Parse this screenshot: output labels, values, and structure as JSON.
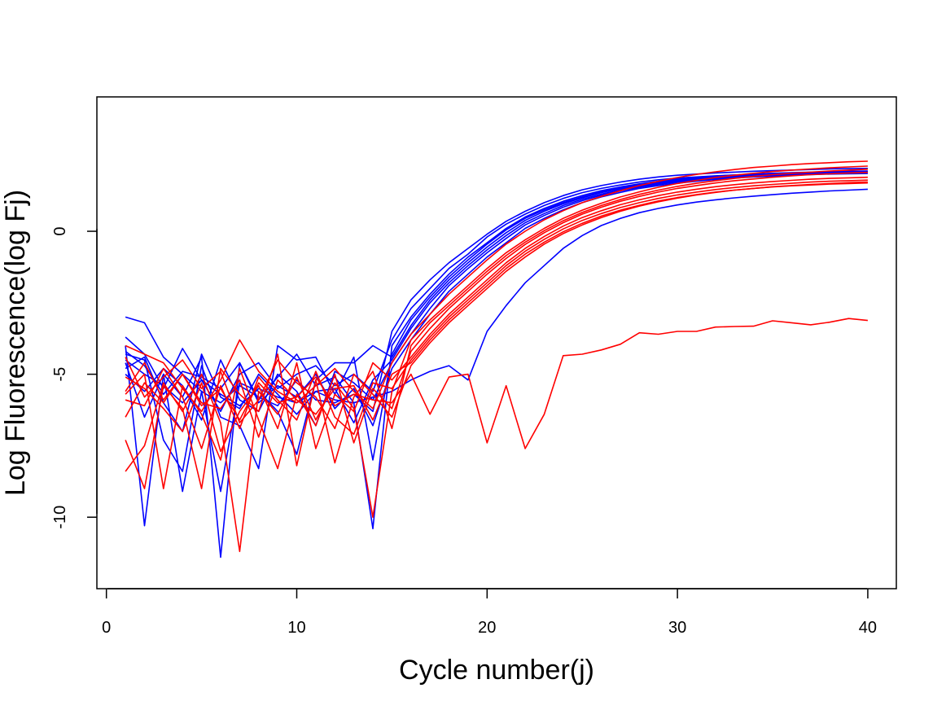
{
  "chart_data": {
    "type": "line",
    "title": "",
    "xlabel": "Cycle number(j)",
    "ylabel": "Log Fluorescence(log Fj)",
    "xlim": [
      -0.5,
      41.5
    ],
    "ylim": [
      -12.5,
      4.7
    ],
    "x_ticks": [
      0,
      10,
      20,
      30,
      40
    ],
    "y_ticks": [
      0,
      -5,
      -10
    ],
    "x_tick_labels": [
      "0",
      "10",
      "20",
      "30",
      "40"
    ],
    "y_tick_labels": [
      "0",
      "-5",
      "-10"
    ],
    "grid": false,
    "legend": "none",
    "colors": {
      "group_a": "#0000ff",
      "group_b": "#ff0000"
    },
    "x": [
      1,
      2,
      3,
      4,
      5,
      6,
      7,
      8,
      9,
      10,
      11,
      12,
      13,
      14,
      15,
      16,
      17,
      18,
      19,
      20,
      21,
      22,
      23,
      24,
      25,
      26,
      27,
      28,
      29,
      30,
      31,
      32,
      33,
      34,
      35,
      36,
      37,
      38,
      39,
      40
    ],
    "series": [
      {
        "name": "blue-1",
        "color": "#0000ff",
        "values": [
          -3.0,
          -3.2,
          -4.4,
          -5.0,
          -5.6,
          -6.0,
          -5.4,
          -5.8,
          -6.1,
          -5.2,
          -5.9,
          -6.0,
          -5.7,
          -6.3,
          -3.5,
          -2.4,
          -1.7,
          -1.1,
          -0.6,
          -0.1,
          0.35,
          0.7,
          1.0,
          1.25,
          1.45,
          1.6,
          1.72,
          1.82,
          1.9,
          1.96,
          2.0,
          2.04,
          2.07,
          2.1,
          2.12,
          2.14,
          2.16,
          2.18,
          2.19,
          2.2
        ]
      },
      {
        "name": "blue-2",
        "color": "#0000ff",
        "values": [
          -3.7,
          -4.3,
          -5.5,
          -4.1,
          -5.2,
          -6.3,
          -5.0,
          -4.6,
          -5.5,
          -5.0,
          -4.7,
          -5.4,
          -5.0,
          -5.6,
          -3.8,
          -2.7,
          -2.0,
          -1.3,
          -0.8,
          -0.2,
          0.25,
          0.6,
          0.9,
          1.15,
          1.35,
          1.5,
          1.62,
          1.72,
          1.8,
          1.86,
          1.9,
          1.94,
          1.97,
          2.0,
          2.02,
          2.04,
          2.06,
          2.07,
          2.08,
          2.09
        ]
      },
      {
        "name": "blue-3",
        "color": "#0000ff",
        "values": [
          -4.0,
          -10.3,
          -5.0,
          -5.8,
          -4.4,
          -11.4,
          -4.6,
          -5.9,
          -5.1,
          -4.3,
          -5.4,
          -5.1,
          -6.0,
          -10.4,
          -4.0,
          -3.0,
          -2.2,
          -1.5,
          -0.9,
          -0.4,
          0.1,
          0.5,
          0.8,
          1.05,
          1.25,
          1.42,
          1.55,
          1.66,
          1.75,
          1.82,
          1.88,
          1.93,
          1.97,
          2.0,
          2.03,
          2.05,
          2.07,
          2.09,
          2.1,
          2.11
        ]
      },
      {
        "name": "blue-4",
        "color": "#0000ff",
        "values": [
          -4.3,
          -4.5,
          -7.3,
          -8.4,
          -4.7,
          -6.5,
          -6.8,
          -8.3,
          -4.0,
          -4.5,
          -4.4,
          -5.7,
          -4.4,
          -8.0,
          -4.3,
          -3.1,
          -2.3,
          -1.6,
          -1.0,
          -0.45,
          0.05,
          0.45,
          0.75,
          1.0,
          1.2,
          1.38,
          1.52,
          1.63,
          1.72,
          1.8,
          1.86,
          1.91,
          1.95,
          1.98,
          2.01,
          2.03,
          2.05,
          2.07,
          2.08,
          2.09
        ]
      },
      {
        "name": "blue-5",
        "color": "#0000ff",
        "values": [
          -4.6,
          -6.5,
          -5.0,
          -9.1,
          -5.6,
          -9.1,
          -5.3,
          -5.6,
          -6.3,
          -7.8,
          -5.2,
          -4.6,
          -4.6,
          -4.0,
          -4.4,
          -3.3,
          -2.4,
          -1.7,
          -1.1,
          -0.55,
          -0.05,
          0.38,
          0.7,
          0.96,
          1.17,
          1.35,
          1.49,
          1.6,
          1.7,
          1.78,
          1.84,
          1.89,
          1.93,
          1.96,
          1.99,
          2.01,
          2.03,
          2.05,
          2.06,
          2.07
        ]
      },
      {
        "name": "blue-6",
        "color": "#0000ff",
        "values": [
          -4.8,
          -4.4,
          -6.0,
          -7.0,
          -4.3,
          -5.8,
          -6.2,
          -5.0,
          -5.7,
          -6.4,
          -5.6,
          -5.5,
          -6.7,
          -5.2,
          -4.5,
          -3.4,
          -2.5,
          -1.8,
          -1.2,
          -0.65,
          -0.15,
          0.3,
          0.62,
          0.9,
          1.12,
          1.3,
          1.45,
          1.57,
          1.67,
          1.75,
          1.81,
          1.86,
          1.9,
          1.94,
          1.97,
          1.99,
          2.01,
          2.03,
          2.04,
          2.05
        ]
      },
      {
        "name": "blue-7",
        "color": "#0000ff",
        "values": [
          -5.0,
          -5.6,
          -4.8,
          -5.4,
          -6.6,
          -4.5,
          -5.9,
          -6.3,
          -5.0,
          -5.6,
          -6.8,
          -4.9,
          -5.3,
          -5.9,
          -4.6,
          -3.6,
          -2.7,
          -1.9,
          -1.3,
          -0.75,
          -0.25,
          0.22,
          0.55,
          0.84,
          1.07,
          1.26,
          1.41,
          1.54,
          1.64,
          1.72,
          1.79,
          1.84,
          1.89,
          1.93,
          1.96,
          1.98,
          2.0,
          2.02,
          2.03,
          2.04
        ]
      },
      {
        "name": "blue-8",
        "color": "#0000ff",
        "values": [
          -4.2,
          -4.7,
          -5.7,
          -4.9,
          -5.1,
          -5.5,
          -4.6,
          -6.0,
          -5.4,
          -5.8,
          -5.0,
          -6.2,
          -5.5,
          -6.8,
          -4.8,
          -3.8,
          -2.9,
          -2.1,
          -1.5,
          -0.9,
          -0.4,
          0.1,
          0.45,
          0.75,
          1.0,
          1.2,
          1.36,
          1.5,
          1.6,
          1.68,
          1.75,
          1.81,
          1.86,
          1.9,
          1.93,
          1.96,
          1.98,
          2.0,
          2.01,
          2.02
        ]
      },
      {
        "name": "blue-outlier",
        "color": "#0000ff",
        "values": [
          -4.5,
          -5.0,
          -5.4,
          -6.0,
          -5.2,
          -5.7,
          -6.1,
          -5.5,
          -5.8,
          -6.0,
          -5.6,
          -5.9,
          -6.0,
          -5.8,
          -5.6,
          -5.2,
          -4.9,
          -4.7,
          -5.2,
          -3.5,
          -2.6,
          -1.8,
          -1.2,
          -0.6,
          -0.15,
          0.2,
          0.45,
          0.65,
          0.8,
          0.92,
          1.02,
          1.1,
          1.17,
          1.23,
          1.28,
          1.33,
          1.37,
          1.41,
          1.44,
          1.47
        ]
      },
      {
        "name": "red-1",
        "color": "#ff0000",
        "values": [
          -4.0,
          -4.3,
          -4.6,
          -5.5,
          -6.3,
          -5.2,
          -3.8,
          -4.9,
          -5.6,
          -6.0,
          -5.4,
          -4.8,
          -5.6,
          -6.2,
          -4.6,
          -3.6,
          -2.9,
          -2.2,
          -1.6,
          -1.0,
          -0.45,
          0.0,
          0.4,
          0.72,
          1.0,
          1.22,
          1.42,
          1.6,
          1.75,
          1.88,
          1.99,
          2.08,
          2.16,
          2.23,
          2.28,
          2.33,
          2.37,
          2.4,
          2.43,
          2.45
        ]
      },
      {
        "name": "red-2",
        "color": "#ff0000",
        "values": [
          -8.4,
          -7.5,
          -5.3,
          -6.3,
          -5.0,
          -6.7,
          -11.2,
          -5.6,
          -6.4,
          -5.1,
          -6.6,
          -5.3,
          -6.2,
          -10.0,
          -5.6,
          -3.8,
          -3.1,
          -2.5,
          -1.9,
          -1.3,
          -0.75,
          -0.3,
          0.1,
          0.45,
          0.74,
          0.98,
          1.2,
          1.38,
          1.54,
          1.67,
          1.78,
          1.88,
          1.96,
          2.03,
          2.09,
          2.14,
          2.18,
          2.22,
          2.25,
          2.28
        ]
      },
      {
        "name": "red-3",
        "color": "#ff0000",
        "values": [
          -7.3,
          -9.0,
          -5.4,
          -6.2,
          -9.0,
          -4.8,
          -5.7,
          -6.3,
          -4.3,
          -8.2,
          -5.2,
          -8.1,
          -5.8,
          -4.9,
          -6.9,
          -4.0,
          -3.2,
          -2.6,
          -2.0,
          -1.4,
          -0.85,
          -0.38,
          0.02,
          0.37,
          0.66,
          0.9,
          1.11,
          1.29,
          1.44,
          1.57,
          1.68,
          1.77,
          1.85,
          1.92,
          1.98,
          2.03,
          2.07,
          2.11,
          2.14,
          2.17
        ]
      },
      {
        "name": "red-4",
        "color": "#ff0000",
        "values": [
          -5.7,
          -5.0,
          -9.0,
          -5.4,
          -6.4,
          -8.0,
          -4.8,
          -6.6,
          -8.3,
          -5.7,
          -6.8,
          -5.0,
          -7.4,
          -5.5,
          -6.2,
          -4.2,
          -3.4,
          -2.7,
          -2.1,
          -1.5,
          -0.95,
          -0.46,
          -0.05,
          0.3,
          0.6,
          0.84,
          1.05,
          1.22,
          1.37,
          1.5,
          1.6,
          1.69,
          1.77,
          1.83,
          1.89,
          1.94,
          1.98,
          2.01,
          2.04,
          2.06
        ]
      },
      {
        "name": "red-5",
        "color": "#ff0000",
        "values": [
          -5.1,
          -5.5,
          -6.2,
          -7.0,
          -5.3,
          -7.7,
          -6.3,
          -5.4,
          -6.9,
          -4.6,
          -7.6,
          -5.7,
          -6.3,
          -4.6,
          -5.2,
          -4.4,
          -3.6,
          -2.9,
          -2.3,
          -1.7,
          -1.1,
          -0.6,
          -0.18,
          0.18,
          0.48,
          0.72,
          0.93,
          1.1,
          1.25,
          1.37,
          1.47,
          1.56,
          1.63,
          1.69,
          1.74,
          1.78,
          1.82,
          1.85,
          1.87,
          1.89
        ]
      },
      {
        "name": "red-6",
        "color": "#ff0000",
        "values": [
          -5.9,
          -6.1,
          -4.8,
          -5.8,
          -7.6,
          -5.4,
          -6.9,
          -5.1,
          -5.9,
          -6.6,
          -4.9,
          -6.5,
          -7.1,
          -5.3,
          -5.5,
          -4.5,
          -3.7,
          -3.0,
          -2.4,
          -1.8,
          -1.2,
          -0.7,
          -0.28,
          0.08,
          0.38,
          0.62,
          0.83,
          1.0,
          1.15,
          1.27,
          1.37,
          1.46,
          1.53,
          1.59,
          1.64,
          1.68,
          1.72,
          1.75,
          1.77,
          1.79
        ]
      },
      {
        "name": "red-7",
        "color": "#ff0000",
        "values": [
          -6.5,
          -5.3,
          -6.0,
          -5.0,
          -6.0,
          -6.2,
          -5.2,
          -7.2,
          -5.2,
          -5.9,
          -6.4,
          -5.5,
          -5.4,
          -6.6,
          -5.0,
          -4.6,
          -3.8,
          -3.1,
          -2.5,
          -1.9,
          -1.3,
          -0.8,
          -0.38,
          -0.02,
          0.28,
          0.53,
          0.74,
          0.91,
          1.06,
          1.18,
          1.28,
          1.37,
          1.44,
          1.5,
          1.55,
          1.59,
          1.62,
          1.65,
          1.67,
          1.69
        ]
      },
      {
        "name": "red-8",
        "color": "#ff0000",
        "values": [
          -4.4,
          -5.8,
          -5.1,
          -4.5,
          -5.5,
          -4.9,
          -6.7,
          -5.9,
          -4.5,
          -5.3,
          -5.8,
          -6.9,
          -5.0,
          -5.7,
          -6.5,
          -4.7,
          -3.9,
          -3.2,
          -2.6,
          -2.0,
          -1.4,
          -0.9,
          -0.45,
          -0.08,
          0.22,
          0.48,
          0.7,
          0.88,
          1.03,
          1.16,
          1.27,
          1.36,
          1.44,
          1.5,
          1.56,
          1.6,
          1.64,
          1.67,
          1.7,
          1.72
        ]
      },
      {
        "name": "red-outlier",
        "color": "#ff0000",
        "values": [
          -5.6,
          -4.6,
          -5.9,
          -5.0,
          -6.1,
          -5.5,
          -6.6,
          -5.3,
          -6.0,
          -5.8,
          -5.1,
          -6.1,
          -5.7,
          -5.9,
          -6.0,
          -5.0,
          -6.4,
          -5.1,
          -5.0,
          -7.4,
          -5.4,
          -7.6,
          -6.4,
          -4.35,
          -4.3,
          -4.15,
          -3.95,
          -3.55,
          -3.6,
          -3.5,
          -3.5,
          -3.35,
          -3.33,
          -3.32,
          -3.13,
          -3.2,
          -3.27,
          -3.18,
          -3.05,
          -3.12
        ]
      }
    ]
  }
}
